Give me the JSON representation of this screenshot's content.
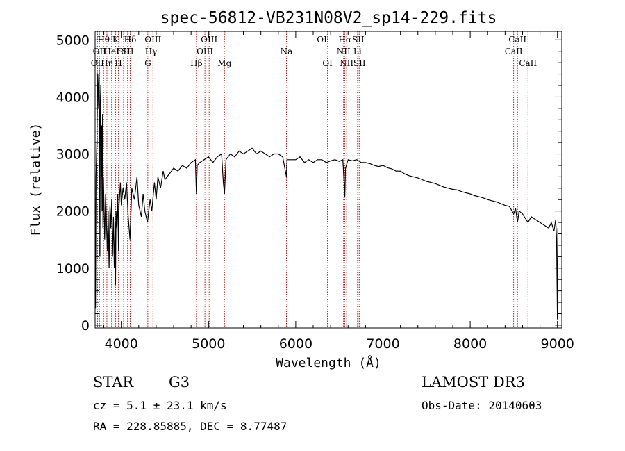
{
  "chart_data": {
    "type": "line",
    "title": "spec-56812-VB231N08V2_sp14-229.fits",
    "xlabel": "Wavelength (Å)",
    "ylabel": "Flux (relative)",
    "xlim": [
      3700,
      9050
    ],
    "ylim": [
      -50,
      5150
    ],
    "xticks": [
      4000,
      5000,
      6000,
      7000,
      8000,
      9000
    ],
    "yticks": [
      0,
      1000,
      2000,
      3000,
      4000,
      5000
    ],
    "grid": false,
    "series": [
      {
        "x": [
          3700,
          3705,
          3710,
          3720,
          3730,
          3740,
          3745,
          3750,
          3755,
          3760,
          3765,
          3770,
          3775,
          3780,
          3785,
          3790,
          3795,
          3800,
          3810,
          3820,
          3830,
          3840,
          3850,
          3860,
          3870,
          3880,
          3890,
          3900,
          3910,
          3920,
          3930,
          3934,
          3940,
          3950,
          3960,
          3968,
          3975,
          3990,
          4000,
          4020,
          4040,
          4060,
          4080,
          4100,
          4120,
          4150,
          4180,
          4200,
          4230,
          4250,
          4270,
          4300,
          4330,
          4350,
          4380,
          4400,
          4420,
          4450,
          4480,
          4500,
          4550,
          4600,
          4650,
          4700,
          4750,
          4800,
          4850,
          4861,
          4870,
          4900,
          4950,
          5000,
          5050,
          5100,
          5150,
          5170,
          5183,
          5200,
          5250,
          5300,
          5350,
          5400,
          5450,
          5500,
          5550,
          5600,
          5650,
          5700,
          5750,
          5800,
          5850,
          5893,
          5900,
          5950,
          6000,
          6050,
          6100,
          6150,
          6200,
          6250,
          6300,
          6350,
          6400,
          6450,
          6500,
          6540,
          6555,
          6563,
          6570,
          6600,
          6650,
          6700,
          6750,
          6800,
          6850,
          6900,
          6950,
          7000,
          7050,
          7100,
          7150,
          7200,
          7250,
          7300,
          7350,
          7400,
          7450,
          7500,
          7550,
          7600,
          7650,
          7700,
          7750,
          7800,
          7850,
          7900,
          7950,
          8000,
          8050,
          8100,
          8150,
          8200,
          8250,
          8300,
          8350,
          8400,
          8450,
          8498,
          8520,
          8542,
          8560,
          8600,
          8662,
          8700,
          8750,
          8800,
          8850,
          8900,
          8930,
          8960,
          8980,
          8990,
          9000,
          9005
        ],
        "y": [
          600,
          300,
          2600,
          3200,
          4400,
          3800,
          4500,
          3600,
          1200,
          3900,
          4200,
          2600,
          3500,
          2000,
          3700,
          1700,
          2600,
          2200,
          1500,
          2300,
          1800,
          1300,
          2000,
          1000,
          2100,
          1700,
          2200,
          1200,
          1900,
          1000,
          1800,
          700,
          2000,
          1700,
          2300,
          1300,
          2100,
          2500,
          2100,
          2400,
          2200,
          2500,
          1900,
          1500,
          2400,
          2200,
          2600,
          2100,
          1900,
          2300,
          2000,
          1800,
          2200,
          2000,
          2500,
          2200,
          2600,
          2400,
          2700,
          2550,
          2650,
          2750,
          2700,
          2800,
          2750,
          2850,
          2900,
          2300,
          2800,
          2850,
          2900,
          2950,
          2850,
          2950,
          3000,
          2500,
          2300,
          2900,
          3000,
          2950,
          3050,
          3000,
          3050,
          3100,
          3000,
          3050,
          3000,
          2950,
          3000,
          3000,
          2950,
          2600,
          2900,
          2900,
          2900,
          2950,
          2850,
          2900,
          2850,
          2900,
          2900,
          2850,
          2880,
          2900,
          2870,
          2900,
          2500,
          2250,
          2750,
          2900,
          2880,
          2900,
          2850,
          2850,
          2830,
          2800,
          2780,
          2800,
          2760,
          2740,
          2700,
          2700,
          2650,
          2620,
          2600,
          2580,
          2550,
          2520,
          2500,
          2480,
          2450,
          2420,
          2400,
          2380,
          2370,
          2340,
          2320,
          2300,
          2270,
          2250,
          2230,
          2200,
          2180,
          2160,
          2130,
          2100,
          2080,
          1950,
          2050,
          1800,
          2000,
          1950,
          1800,
          1900,
          1850,
          1800,
          1750,
          1700,
          1800,
          1650,
          1850,
          1500,
          100,
          1700
        ]
      }
    ],
    "lines": [
      {
        "x": 3727,
        "label": "OII",
        "row": 2
      },
      {
        "x": 3750,
        "label": "OII",
        "row": 1
      },
      {
        "x": 3797,
        "label": "Hθ",
        "row": 0
      },
      {
        "x": 3835,
        "label": "Hη",
        "row": 2
      },
      {
        "x": 3889,
        "label": "HeI",
        "row": 1
      },
      {
        "x": 3934,
        "label": "K",
        "row": 0
      },
      {
        "x": 3968,
        "label": "H",
        "row": 2
      },
      {
        "x": 4026,
        "label": "SII",
        "row": 1
      },
      {
        "x": 4072,
        "label": "SII",
        "row": 1
      },
      {
        "x": 4102,
        "label": "Hδ",
        "row": 0
      },
      {
        "x": 4304,
        "label": "G",
        "row": 2
      },
      {
        "x": 4341,
        "label": "Hγ",
        "row": 1
      },
      {
        "x": 4363,
        "label": "OIII",
        "row": 0
      },
      {
        "x": 4861,
        "label": "Hβ",
        "row": 2
      },
      {
        "x": 4959,
        "label": "OIII",
        "row": 1
      },
      {
        "x": 5007,
        "label": "OIII",
        "row": 0
      },
      {
        "x": 5183,
        "label": "Mg",
        "row": 2
      },
      {
        "x": 5893,
        "label": "Na",
        "row": 1
      },
      {
        "x": 6300,
        "label": "OI",
        "row": 0
      },
      {
        "x": 6364,
        "label": "OI",
        "row": 2
      },
      {
        "x": 6548,
        "label": "NII",
        "row": 1
      },
      {
        "x": 6563,
        "label": "Hα",
        "row": 0
      },
      {
        "x": 6583,
        "label": "NII",
        "row": 2
      },
      {
        "x": 6708,
        "label": "Li",
        "row": 1
      },
      {
        "x": 6716,
        "label": "SII",
        "row": 0
      },
      {
        "x": 6731,
        "label": "SII",
        "row": 2
      },
      {
        "x": 8498,
        "label": "CaII",
        "row": 1
      },
      {
        "x": 8542,
        "label": "CaII",
        "row": 0
      },
      {
        "x": 8662,
        "label": "CaII",
        "row": 2
      }
    ]
  },
  "info": {
    "class": "STAR",
    "subclass": "G3",
    "survey": "LAMOST DR3",
    "cz": "cz = 5.1 ± 23.1 km/s",
    "obs_date": "Obs-Date: 20140603",
    "coords": "RA = 228.85885, DEC =   8.77487"
  }
}
